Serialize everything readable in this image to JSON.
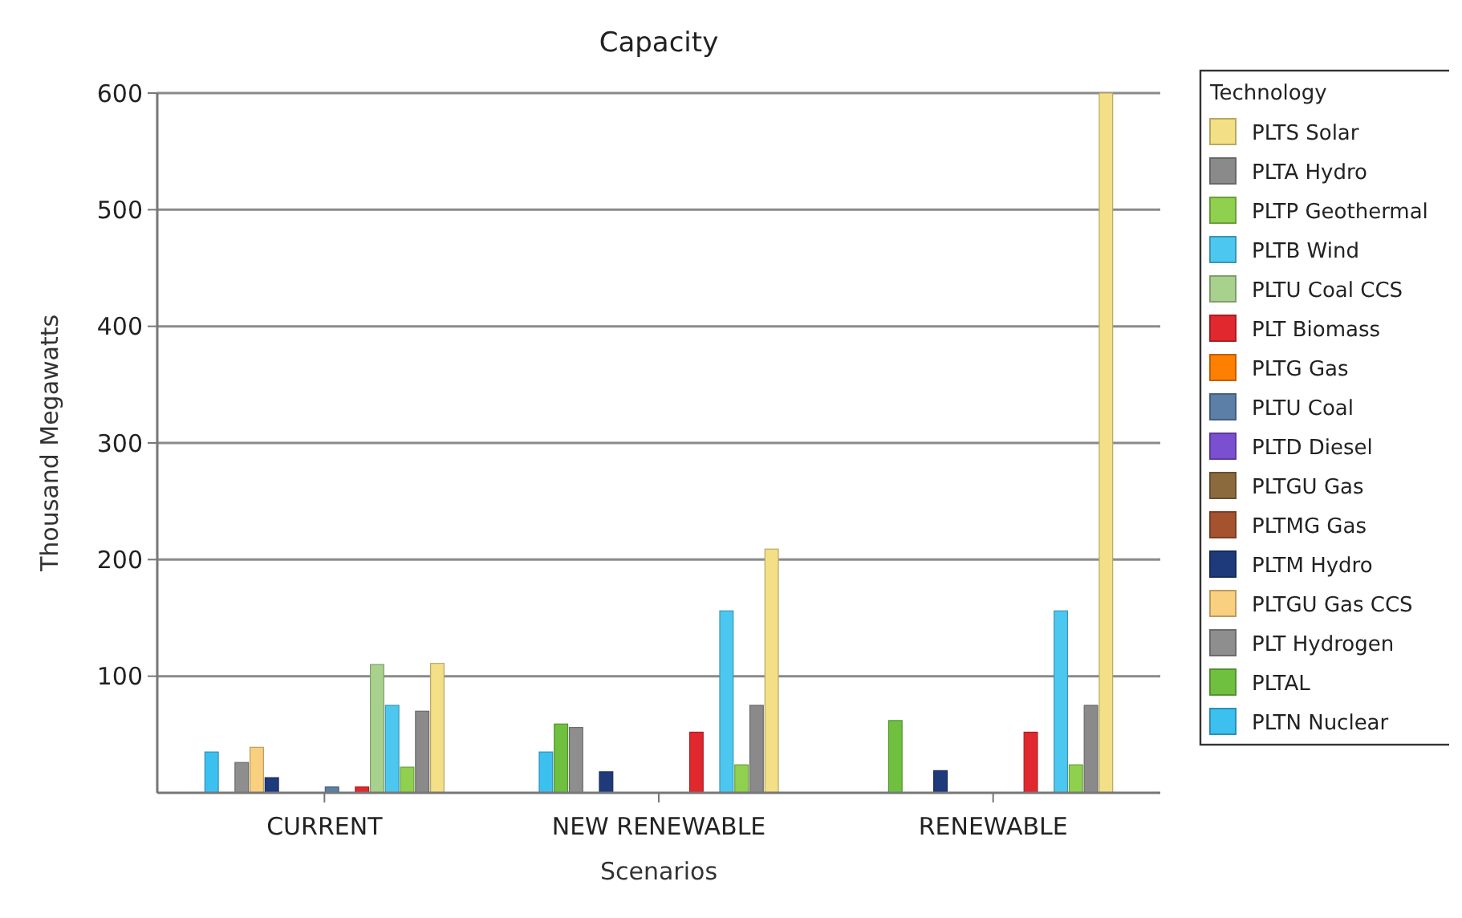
{
  "chart_data": {
    "type": "bar",
    "title": "Capacity",
    "xlabel": "Scenarios",
    "ylabel": "Thousand Megawatts",
    "legend_title": "Technology",
    "legend": "right",
    "grid": "y",
    "categories": [
      "CURRENT",
      "NEW RENEWABLE",
      "RENEWABLE"
    ],
    "ylim": [
      0,
      600
    ],
    "yticks": [
      100,
      200,
      300,
      400,
      500,
      600
    ],
    "series": [
      {
        "name": "PLTS Solar",
        "color": "#f3df86",
        "values": [
          111,
          209,
          600
        ]
      },
      {
        "name": "PLTA Hydro",
        "color": "#8a8a8a",
        "values": [
          70,
          75,
          75
        ]
      },
      {
        "name": "PLTP Geothermal",
        "color": "#8fd14f",
        "values": [
          22,
          24,
          24
        ]
      },
      {
        "name": "PLTB Wind",
        "color": "#4cc8f0",
        "values": [
          75,
          156,
          156
        ]
      },
      {
        "name": "PLTU Coal CCS",
        "color": "#a9d18e",
        "values": [
          110,
          0,
          0
        ]
      },
      {
        "name": "PLT Biomass",
        "color": "#e0282e",
        "values": [
          5,
          52,
          52
        ]
      },
      {
        "name": "PLTG Gas",
        "color": "#ff8000",
        "values": [
          0,
          0,
          0
        ]
      },
      {
        "name": "PLTU Coal",
        "color": "#5b7fa6",
        "values": [
          5,
          null,
          null
        ]
      },
      {
        "name": "PLTD Diesel",
        "color": "#7a4fd0",
        "values": [
          0,
          0,
          0
        ]
      },
      {
        "name": "PLTGU Gas",
        "color": "#8b6a3e",
        "values": [
          0,
          0,
          0
        ]
      },
      {
        "name": "PLTMG Gas",
        "color": "#a5522e",
        "values": [
          0,
          0,
          0
        ]
      },
      {
        "name": "PLTM Hydro",
        "color": "#1f3a7a",
        "values": [
          13,
          18,
          19
        ]
      },
      {
        "name": "PLTGU Gas CCS",
        "color": "#f9d080",
        "values": [
          39,
          0,
          0
        ]
      },
      {
        "name": "PLT Hydrogen",
        "color": "#8e8e8e",
        "values": [
          26,
          56,
          0
        ]
      },
      {
        "name": "PLTAL",
        "color": "#70c040",
        "values": [
          null,
          59,
          62
        ]
      },
      {
        "name": "PLTN Nuclear",
        "color": "#3cc0f0",
        "values": [
          35,
          35,
          0
        ]
      }
    ]
  }
}
